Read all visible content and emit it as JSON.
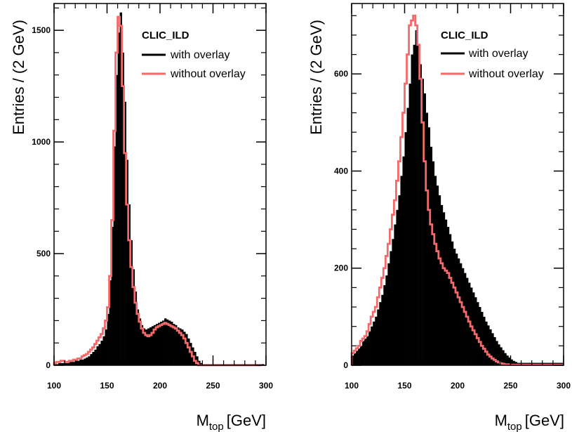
{
  "chart_data": [
    {
      "type": "area",
      "panel": "left",
      "experiment_label": "CLIC_ILD",
      "xlabel_main": "M",
      "xlabel_sub": "top",
      "xlabel_unit": "[GeV]",
      "ylabel": "Entries / (2 GeV)",
      "xlim": [
        100,
        300
      ],
      "ylim": [
        0,
        1620
      ],
      "xticks": [
        100,
        150,
        200,
        250,
        300
      ],
      "yticks": [
        0,
        500,
        1000,
        1500
      ],
      "grid": false,
      "legend_position": "top-right",
      "bin_width": 2,
      "x_start": 100,
      "series": [
        {
          "name": "with overlay",
          "style": "filled",
          "color": "#000000",
          "values": [
            5,
            5,
            10,
            10,
            10,
            10,
            10,
            15,
            15,
            15,
            20,
            20,
            25,
            25,
            30,
            35,
            40,
            50,
            60,
            70,
            85,
            95,
            110,
            130,
            160,
            230,
            380,
            620,
            980,
            1300,
            1490,
            1580,
            1400,
            1180,
            920,
            720,
            560,
            430,
            330,
            250,
            210,
            180,
            165,
            160,
            165,
            170,
            175,
            180,
            185,
            190,
            195,
            200,
            210,
            205,
            200,
            195,
            185,
            180,
            170,
            165,
            160,
            150,
            140,
            120,
            100,
            80,
            60,
            40,
            20,
            10,
            5,
            5,
            5,
            5,
            5,
            5,
            5,
            5,
            5,
            5,
            5,
            5,
            5,
            5,
            5,
            5,
            5,
            5,
            5,
            5,
            5,
            5,
            5,
            5,
            5,
            5,
            5,
            5,
            5
          ]
        },
        {
          "name": "without overlay",
          "style": "step",
          "color": "#f26a6a",
          "values": [
            10,
            15,
            15,
            20,
            20,
            15,
            15,
            20,
            20,
            25,
            25,
            30,
            30,
            40,
            45,
            50,
            60,
            70,
            80,
            95,
            110,
            125,
            140,
            165,
            200,
            260,
            400,
            650,
            1050,
            1400,
            1560,
            1520,
            1250,
            950,
            720,
            560,
            440,
            350,
            280,
            230,
            195,
            165,
            145,
            135,
            130,
            135,
            145,
            160,
            170,
            175,
            180,
            185,
            190,
            185,
            180,
            175,
            170,
            165,
            155,
            145,
            135,
            120,
            100,
            80,
            60,
            40,
            20,
            10,
            0,
            0,
            0,
            0,
            0,
            0,
            0,
            0,
            0,
            0,
            0,
            0,
            0,
            0,
            0,
            0,
            0,
            0,
            0,
            0,
            0,
            0,
            0,
            0,
            0,
            0,
            0,
            0,
            0,
            0
          ]
        }
      ]
    },
    {
      "type": "area",
      "panel": "right",
      "experiment_label": "CLIC_ILD",
      "xlabel_main": "M",
      "xlabel_sub": "top",
      "xlabel_unit": "[GeV]",
      "ylabel": "Entries / (2 GeV)",
      "xlim": [
        100,
        300
      ],
      "ylim": [
        0,
        745
      ],
      "xticks": [
        100,
        150,
        200,
        250,
        300
      ],
      "yticks": [
        0,
        200,
        400,
        600
      ],
      "grid": false,
      "legend_position": "top-right",
      "bin_width": 2,
      "x_start": 100,
      "series": [
        {
          "name": "with overlay",
          "style": "filled",
          "color": "#000000",
          "values": [
            20,
            25,
            30,
            35,
            40,
            50,
            55,
            60,
            70,
            80,
            90,
            100,
            115,
            130,
            145,
            165,
            185,
            210,
            235,
            260,
            290,
            320,
            350,
            390,
            430,
            480,
            530,
            580,
            640,
            660,
            690,
            660,
            620,
            590,
            560,
            520,
            490,
            450,
            420,
            390,
            370,
            350,
            330,
            315,
            300,
            285,
            270,
            255,
            240,
            230,
            220,
            210,
            200,
            190,
            180,
            170,
            160,
            150,
            140,
            130,
            120,
            110,
            100,
            90,
            82,
            74,
            66,
            58,
            50,
            43,
            37,
            31,
            25,
            20,
            16,
            12,
            9,
            7,
            5,
            5,
            5,
            5,
            5,
            5,
            5,
            5,
            5,
            5,
            5,
            5,
            5,
            5,
            5,
            5,
            5,
            5,
            5,
            5,
            5,
            5
          ]
        },
        {
          "name": "without overlay",
          "style": "step",
          "color": "#f26a6a",
          "values": [
            25,
            30,
            35,
            40,
            50,
            55,
            60,
            70,
            85,
            100,
            110,
            120,
            140,
            160,
            180,
            200,
            225,
            250,
            280,
            310,
            340,
            380,
            420,
            470,
            520,
            580,
            640,
            700,
            710,
            720,
            700,
            660,
            590,
            500,
            420,
            360,
            320,
            290,
            270,
            250,
            235,
            220,
            210,
            200,
            195,
            190,
            180,
            170,
            160,
            150,
            140,
            130,
            120,
            110,
            100,
            90,
            80,
            72,
            64,
            56,
            48,
            40,
            34,
            28,
            22,
            18,
            14,
            11,
            8,
            6,
            4,
            3,
            2,
            2,
            1,
            1,
            1,
            1,
            1,
            1,
            1,
            1,
            1,
            1,
            1,
            1,
            1,
            1,
            1,
            1,
            1,
            1,
            1,
            1,
            1,
            1,
            1,
            1,
            1,
            1
          ]
        }
      ]
    }
  ]
}
